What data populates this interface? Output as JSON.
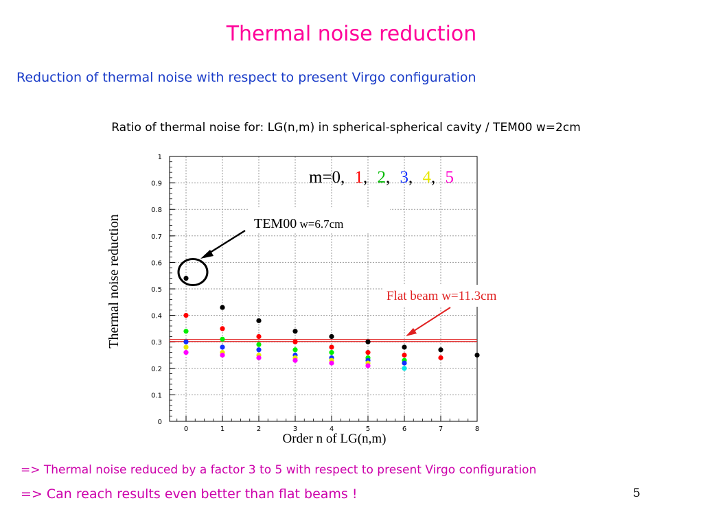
{
  "slide": {
    "title": "Thermal noise reduction",
    "subtitle": "Reduction of thermal noise with respect to present Virgo configuration",
    "chart_caption": "Ratio of thermal noise for: LG(n,m) in spherical-spherical cavity  /  TEM00 w=2cm",
    "note1": "=> Thermal noise reduced by a factor 3 to 5 with respect to present Virgo configuration",
    "note2": "=> Can reach results even better than flat beams !",
    "page_number": "5"
  },
  "colors": {
    "title": "#ff0099",
    "subtitle": "#1a3cc8",
    "notes": "#cc00aa",
    "flat_line": "#e02020"
  },
  "chart_data": {
    "type": "scatter",
    "xlabel": "Order n of LG(n,m)",
    "ylabel": "Thermal noise reduction",
    "xlim": [
      -0.5,
      8
    ],
    "ylim": [
      0,
      1
    ],
    "xticks": [
      "0",
      "1",
      "2",
      "3",
      "4",
      "5",
      "6",
      "7",
      "8"
    ],
    "yticks": [
      "0",
      "0.1",
      "0.2",
      "0.3",
      "0.4",
      "0.5",
      "0.6",
      "0.7",
      "0.8",
      "0.9",
      "1"
    ],
    "grid": true,
    "legend": {
      "prefix": "m=0,",
      "entries": [
        {
          "label": "1",
          "color": "#ff0000"
        },
        {
          "label": "2",
          "color": "#00bb00"
        },
        {
          "label": "3",
          "color": "#1030ff"
        },
        {
          "label": "4",
          "color": "#e8e800"
        },
        {
          "label": "5",
          "color": "#ff00cc"
        }
      ]
    },
    "series": [
      {
        "color": "#000000",
        "points": [
          [
            0,
            0.54
          ],
          [
            1,
            0.43
          ],
          [
            2,
            0.38
          ],
          [
            3,
            0.34
          ],
          [
            4,
            0.32
          ],
          [
            5,
            0.3
          ],
          [
            6,
            0.28
          ],
          [
            7,
            0.27
          ],
          [
            8,
            0.25
          ]
        ]
      },
      {
        "color": "#ff0000",
        "points": [
          [
            0,
            0.4
          ],
          [
            1,
            0.35
          ],
          [
            2,
            0.32
          ],
          [
            3,
            0.3
          ],
          [
            4,
            0.28
          ],
          [
            5,
            0.26
          ],
          [
            6,
            0.25
          ],
          [
            7,
            0.24
          ]
        ]
      },
      {
        "color": "#00ee00",
        "points": [
          [
            0,
            0.34
          ],
          [
            1,
            0.31
          ],
          [
            2,
            0.29
          ],
          [
            3,
            0.27
          ],
          [
            4,
            0.26
          ],
          [
            5,
            0.24
          ],
          [
            6,
            0.23
          ]
        ]
      },
      {
        "color": "#1030ff",
        "points": [
          [
            0,
            0.3
          ],
          [
            1,
            0.28
          ],
          [
            2,
            0.27
          ],
          [
            3,
            0.25
          ],
          [
            4,
            0.24
          ],
          [
            5,
            0.23
          ],
          [
            6,
            0.22
          ]
        ]
      },
      {
        "color": "#e8e800",
        "points": [
          [
            0,
            0.28
          ],
          [
            1,
            0.26
          ],
          [
            2,
            0.25
          ],
          [
            3,
            0.24
          ],
          [
            4,
            0.23
          ],
          [
            5,
            0.22
          ]
        ]
      },
      {
        "color": "#ff00ff",
        "points": [
          [
            0,
            0.26
          ],
          [
            1,
            0.25
          ],
          [
            2,
            0.24
          ],
          [
            3,
            0.23
          ],
          [
            4,
            0.22
          ],
          [
            5,
            0.21
          ]
        ]
      },
      {
        "color": "#00e8e8",
        "points": [
          [
            6,
            0.2
          ]
        ]
      }
    ],
    "reference_line": {
      "y": 0.305,
      "color": "#e02020"
    },
    "annotations": {
      "tem00_prefix": "TEM00",
      "tem00_suffix": " w=6.7cm",
      "flat_beam": "Flat beam w=11.3cm"
    },
    "highlight_point": [
      0,
      0.54
    ]
  }
}
